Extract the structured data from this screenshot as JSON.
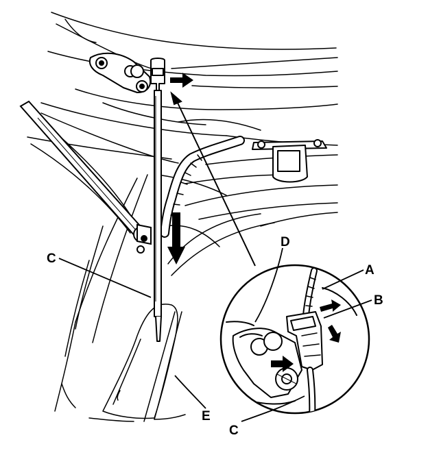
{
  "figure": {
    "kind": "technical line drawing",
    "colors": {
      "ink": "#000000",
      "paper": "#ffffff"
    },
    "callouts": {
      "a": "A",
      "b": "B",
      "c_left": "C",
      "c_right": "C",
      "d": "D",
      "e": "E"
    }
  }
}
